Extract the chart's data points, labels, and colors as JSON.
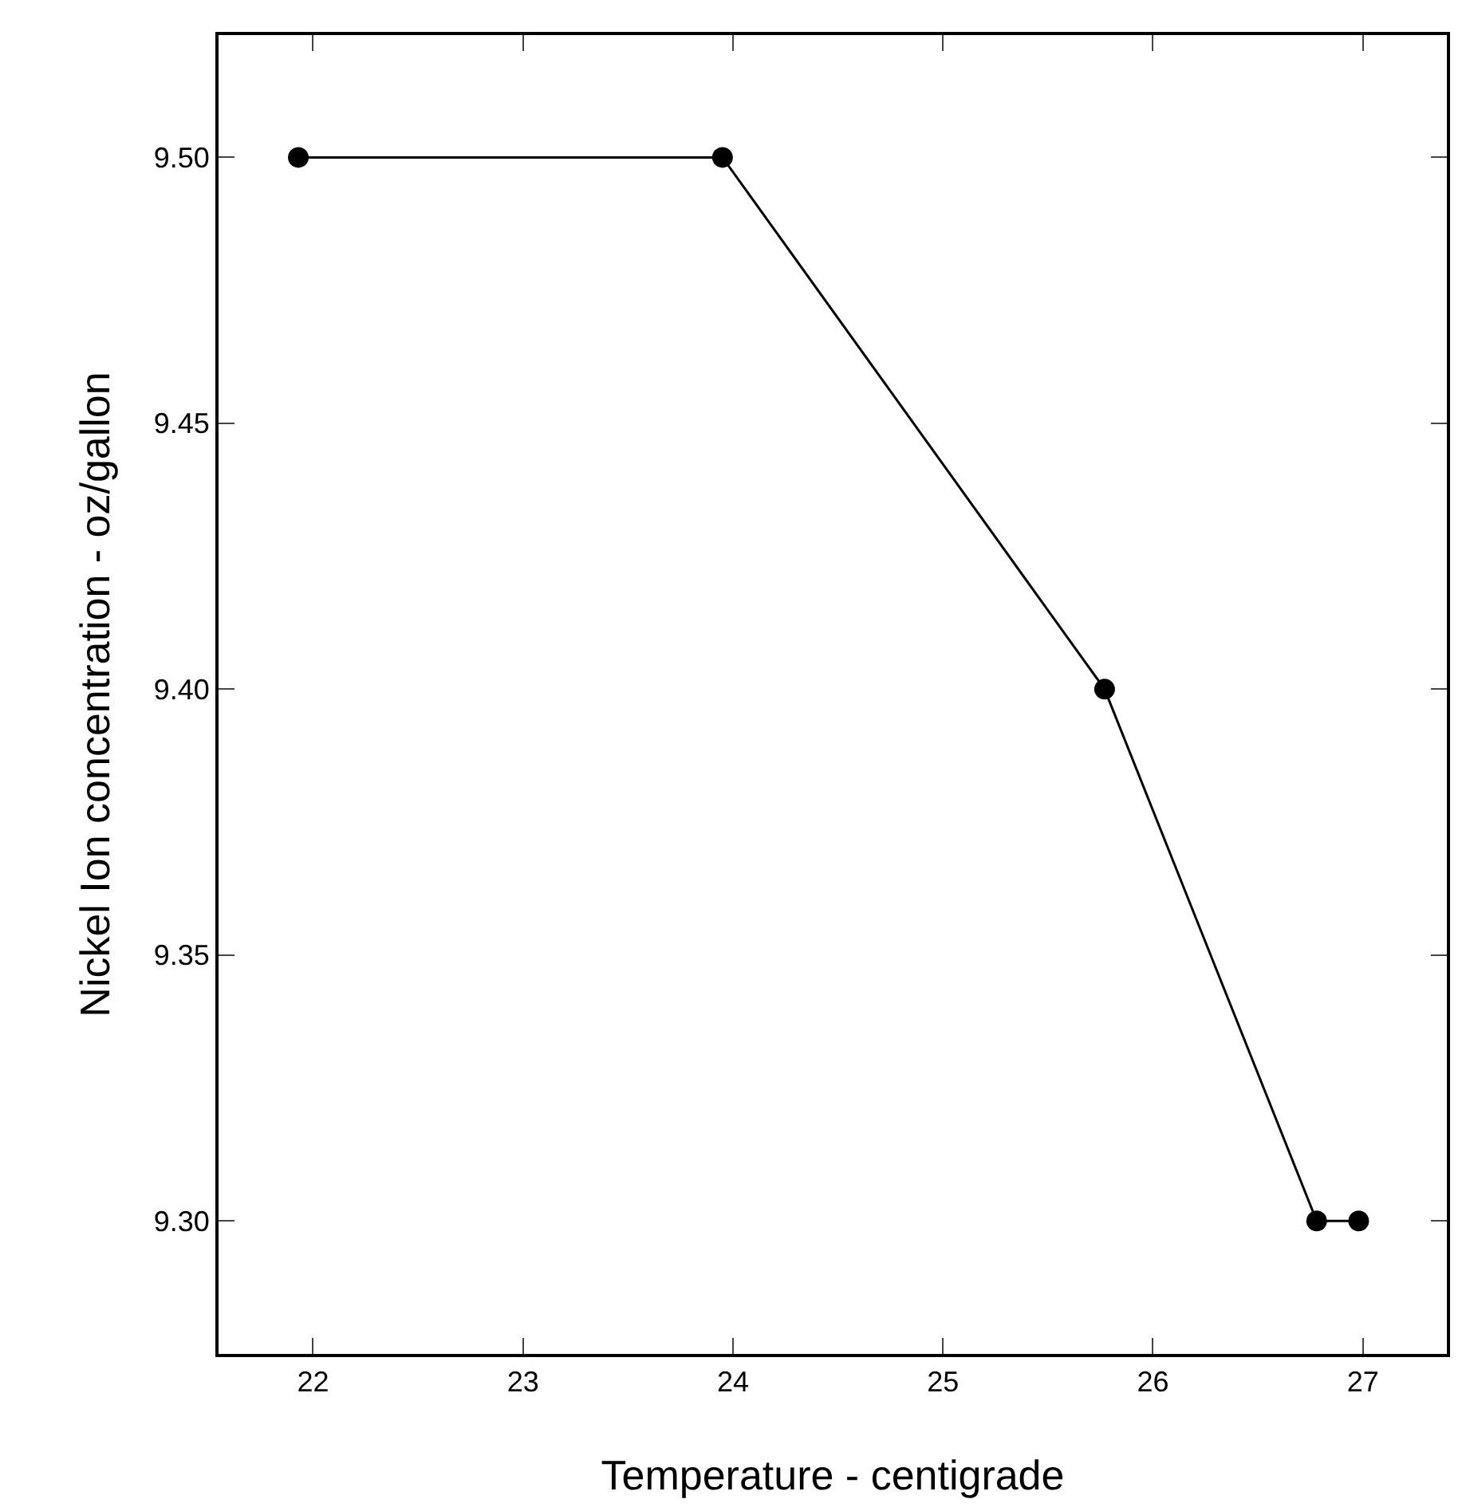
{
  "chart_data": {
    "type": "line",
    "xlabel": "Temperature - centigrade",
    "ylabel": "Nickel Ion concentration - oz/gallon",
    "x": [
      21.93,
      23.95,
      25.77,
      26.78,
      26.98
    ],
    "series": [
      {
        "color": "#000000",
        "values": [
          9.5,
          9.5,
          9.4,
          9.3,
          9.3
        ]
      }
    ],
    "xlim": [
      21.55,
      27.4
    ],
    "ylim": [
      9.275,
      9.523
    ],
    "xticks": [
      22,
      23,
      24,
      25,
      26,
      27
    ],
    "yticks": [
      {
        "value": 9.3,
        "label": "9.30"
      },
      {
        "value": 9.35,
        "label": "9.35"
      },
      {
        "value": 9.4,
        "label": "9.40"
      },
      {
        "value": 9.45,
        "label": "9.45"
      },
      {
        "value": 9.5,
        "label": "9.50"
      }
    ],
    "marker": "circle",
    "line_style": "solid",
    "legend": false
  }
}
